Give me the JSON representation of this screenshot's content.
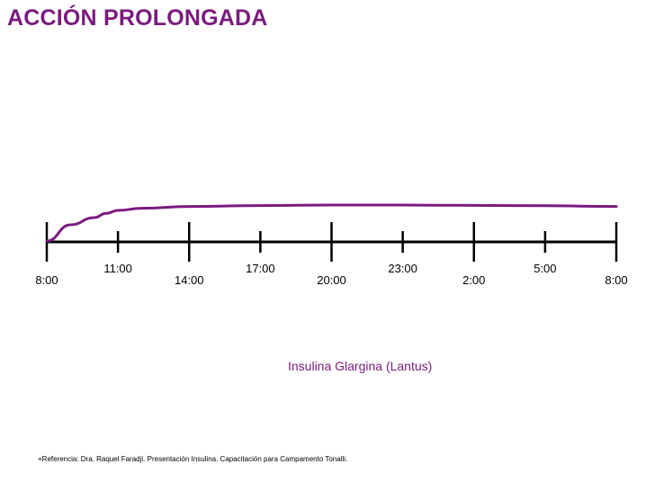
{
  "slide": {
    "title": "ACCIÓN PROLONGADA",
    "reference": "+Referencia: Dra. Raquel Faradji. Presentación Insulina. Capacitación para Campamento Tonalli."
  },
  "colors": {
    "title": "#7b1a7f",
    "curve": "#7b1a7f",
    "axis": "#000000"
  },
  "chart_data": {
    "type": "line",
    "title": "",
    "xlabel": "",
    "ylabel": "",
    "x_ticks": [
      "8:00",
      "11:00",
      "14:00",
      "17:00",
      "20:00",
      "23:00",
      "2:00",
      "5:00",
      "8:00"
    ],
    "x_hours": [
      0,
      3,
      6,
      9,
      12,
      15,
      18,
      21,
      24
    ],
    "xlim": [
      0,
      24
    ],
    "ylim": [
      0,
      1
    ],
    "grid": false,
    "series": [
      {
        "name": "Insulina Glargina (Lantus)",
        "x": [
          0,
          1,
          2,
          2.5,
          3,
          4,
          6,
          9,
          12,
          15,
          18,
          21,
          24
        ],
        "values": [
          0.0,
          0.45,
          0.65,
          0.77,
          0.85,
          0.91,
          0.96,
          0.985,
          1.0,
          1.0,
          0.99,
          0.98,
          0.96
        ]
      }
    ]
  }
}
